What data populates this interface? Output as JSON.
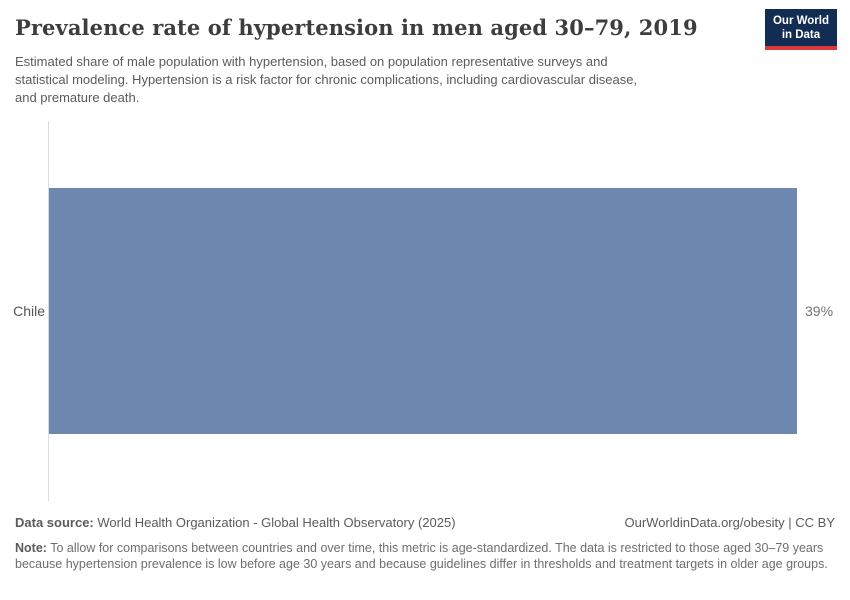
{
  "header": {
    "title": "Prevalence rate of hypertension in men aged 30–79, 2019",
    "subtitle_lines": [
      "Estimated share of male population with hypertension, based on population representative surveys and",
      "statistical modeling. Hypertension is a risk factor for chronic complications, including cardiovascular disease,",
      "and premature death."
    ],
    "logo": {
      "line1": "Our World",
      "line2": "in Data",
      "bg_color": "#132c54",
      "accent_color": "#d93a3c"
    }
  },
  "chart_data": {
    "type": "bar",
    "orientation": "horizontal",
    "categories": [
      "Chile"
    ],
    "values": [
      39
    ],
    "value_labels": [
      "39%"
    ],
    "title": "Prevalence rate of hypertension in men aged 30–79, 2019",
    "xlabel": "",
    "ylabel": "",
    "xlim": [
      0,
      39
    ],
    "grid": false,
    "legend": false,
    "bar_color": "#6d87ae",
    "axis_line_color": "#dcdcdc"
  },
  "footer": {
    "source_label": "Data source:",
    "source_text": "World Health Organization - Global Health Observatory (2025)",
    "citation": "OurWorldinData.org/obesity | CC BY",
    "note_label": "Note:",
    "note_text": "To allow for comparisons between countries and over time, this metric is age-standardized. The data is restricted to those aged 30–79 years because hypertension prevalence is low before age 30 years and because guidelines differ in thresholds and treatment targets in older age groups."
  }
}
